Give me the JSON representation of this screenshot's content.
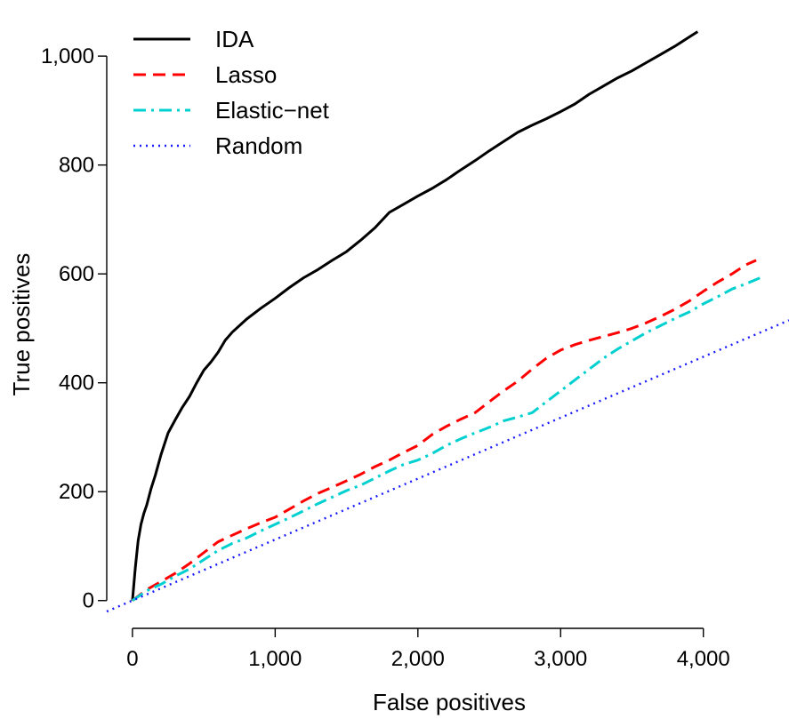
{
  "chart_data": {
    "type": "line",
    "title": "",
    "xlabel": "False positives",
    "ylabel": "True positives",
    "xlim": [
      -180,
      4600
    ],
    "ylim": [
      -20,
      1090
    ],
    "xticks": [
      0,
      1000,
      2000,
      3000,
      4000
    ],
    "xtick_labels": [
      "0",
      "1,000",
      "2,000",
      "3,000",
      "4,000"
    ],
    "yticks": [
      0,
      200,
      400,
      600,
      800,
      1000
    ],
    "ytick_labels": [
      "0",
      "200",
      "400",
      "600",
      "800",
      "1,000"
    ],
    "grid": false,
    "legend_position": "top-left",
    "series": [
      {
        "name": "IDA",
        "color": "#000000",
        "dash": "solid",
        "x": [
          0,
          20,
          40,
          60,
          80,
          100,
          130,
          160,
          200,
          250,
          300,
          350,
          400,
          450,
          500,
          550,
          600,
          650,
          700,
          800,
          900,
          1000,
          1100,
          1200,
          1300,
          1400,
          1500,
          1600,
          1700,
          1800,
          1900,
          2000,
          2100,
          2200,
          2300,
          2400,
          2500,
          2600,
          2700,
          2800,
          2900,
          3000,
          3100,
          3200,
          3300,
          3400,
          3500,
          3600,
          3700,
          3800,
          3900,
          3960
        ],
        "y": [
          0,
          60,
          110,
          140,
          160,
          175,
          205,
          230,
          268,
          308,
          332,
          355,
          375,
          400,
          423,
          438,
          456,
          478,
          493,
          517,
          537,
          555,
          575,
          593,
          608,
          625,
          641,
          662,
          685,
          713,
          728,
          743,
          757,
          773,
          791,
          808,
          826,
          843,
          860,
          873,
          885,
          898,
          912,
          930,
          945,
          960,
          973,
          988,
          1003,
          1018,
          1035,
          1045
        ]
      },
      {
        "name": "Lasso",
        "color": "#ff0000",
        "dash": "dashed",
        "x": [
          0,
          100,
          200,
          300,
          400,
          500,
          600,
          700,
          800,
          900,
          1000,
          1100,
          1200,
          1300,
          1400,
          1500,
          1600,
          1700,
          1800,
          1900,
          2000,
          2100,
          2200,
          2300,
          2400,
          2500,
          2600,
          2700,
          2800,
          2900,
          3000,
          3100,
          3200,
          3300,
          3400,
          3500,
          3600,
          3700,
          3800,
          3900,
          4000,
          4100,
          4200,
          4300,
          4370
        ],
        "y": [
          0,
          20,
          35,
          50,
          68,
          88,
          108,
          120,
          132,
          143,
          153,
          168,
          183,
          197,
          208,
          220,
          232,
          246,
          258,
          272,
          285,
          305,
          320,
          333,
          345,
          365,
          385,
          403,
          425,
          445,
          460,
          470,
          478,
          485,
          492,
          500,
          510,
          522,
          535,
          550,
          568,
          585,
          600,
          617,
          625
        ]
      },
      {
        "name": "Elastic−net",
        "color": "#00d0d0",
        "dash": "dashdot",
        "x": [
          0,
          100,
          200,
          300,
          400,
          500,
          600,
          700,
          800,
          900,
          1000,
          1100,
          1200,
          1300,
          1400,
          1500,
          1600,
          1700,
          1800,
          1900,
          2000,
          2100,
          2200,
          2300,
          2400,
          2500,
          2600,
          2700,
          2800,
          2900,
          3000,
          3100,
          3200,
          3300,
          3400,
          3500,
          3600,
          3700,
          3800,
          3900,
          4000,
          4100,
          4200,
          4300,
          4400
        ],
        "y": [
          0,
          18,
          30,
          45,
          58,
          75,
          92,
          105,
          115,
          128,
          140,
          152,
          165,
          178,
          190,
          202,
          212,
          225,
          238,
          250,
          258,
          270,
          285,
          297,
          308,
          318,
          330,
          337,
          345,
          365,
          385,
          405,
          425,
          445,
          462,
          477,
          492,
          505,
          518,
          530,
          545,
          558,
          572,
          582,
          593
        ]
      },
      {
        "name": "Random",
        "color": "#1a1aff",
        "dash": "dotted",
        "x": [
          -180,
          4600
        ],
        "y": [
          -20,
          515
        ]
      }
    ]
  }
}
